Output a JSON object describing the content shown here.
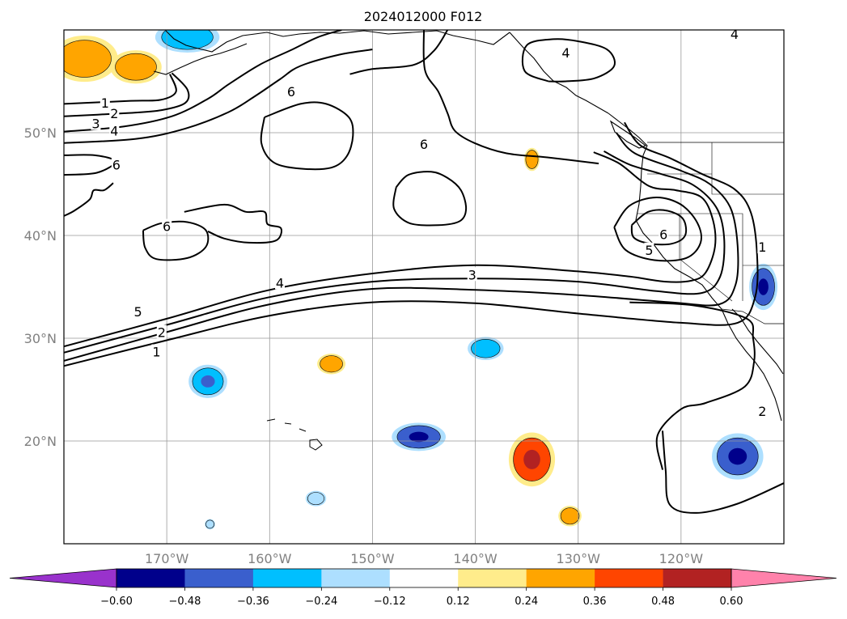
{
  "title": "2024012000 F012",
  "map": {
    "projection": "Plate Carree",
    "lon_range": [
      -180,
      -110
    ],
    "lat_range": [
      10,
      60
    ],
    "grid": true,
    "lat_ticks": [
      {
        "value": 50,
        "label": "50°N"
      },
      {
        "value": 40,
        "label": "40°N"
      },
      {
        "value": 30,
        "label": "30°N"
      },
      {
        "value": 20,
        "label": "20°N"
      }
    ],
    "lon_ticks": [
      {
        "value": -170,
        "label": "170°W"
      },
      {
        "value": -160,
        "label": "160°W"
      },
      {
        "value": -150,
        "label": "150°W"
      },
      {
        "value": -140,
        "label": "140°W"
      },
      {
        "value": -130,
        "label": "130°W"
      },
      {
        "value": -120,
        "label": "120°W"
      }
    ]
  },
  "colorbar": {
    "orientation": "horizontal",
    "extend": "both",
    "levels": [
      -0.6,
      -0.48,
      -0.36,
      -0.24,
      -0.12,
      0.12,
      0.24,
      0.36,
      0.48,
      0.6
    ],
    "tick_labels": [
      "−0.60",
      "−0.48",
      "−0.36",
      "−0.24",
      "−0.12",
      "0.12",
      "0.24",
      "0.36",
      "0.48",
      "0.60"
    ],
    "colors": [
      "#9932CC",
      "#00008B",
      "#3A5FCD",
      "#00BFFF",
      "#ADDFFF",
      "#FFFFFF",
      "#FFEC8B",
      "#FFA500",
      "#FF4500",
      "#B22222",
      "#FF82AB"
    ]
  },
  "contour_labels": [
    {
      "text": "6",
      "lon": -157.9,
      "lat": 54.0
    },
    {
      "text": "6",
      "lon": -174.9,
      "lat": 46.9
    },
    {
      "text": "6",
      "lon": -170.0,
      "lat": 40.9
    },
    {
      "text": "6",
      "lon": -145.0,
      "lat": 48.9
    },
    {
      "text": "6",
      "lon": -121.7,
      "lat": 40.1
    },
    {
      "text": "5",
      "lon": -123.1,
      "lat": 38.6
    },
    {
      "text": "4",
      "lon": -131.2,
      "lat": 57.8
    },
    {
      "text": "4",
      "lon": -114.8,
      "lat": 59.6
    },
    {
      "text": "4",
      "lon": -159.0,
      "lat": 35.4
    },
    {
      "text": "4",
      "lon": -175.1,
      "lat": 50.2
    },
    {
      "text": "3",
      "lon": -140.3,
      "lat": 36.2
    },
    {
      "text": "3",
      "lon": -176.9,
      "lat": 50.9
    },
    {
      "text": "2",
      "lon": -175.1,
      "lat": 51.9
    },
    {
      "text": "1",
      "lon": -176.0,
      "lat": 52.9
    },
    {
      "text": "5",
      "lon": -172.8,
      "lat": 32.6
    },
    {
      "text": "2",
      "lon": -170.5,
      "lat": 30.6
    },
    {
      "text": "1",
      "lon": -171.0,
      "lat": 28.7
    },
    {
      "text": "1",
      "lon": -112.1,
      "lat": 38.9
    },
    {
      "text": "2",
      "lon": -112.1,
      "lat": 22.9
    }
  ],
  "contours": [
    {
      "value": 6,
      "pts": [
        [
          -160.5,
          51.5
        ],
        [
          -157.0,
          52.8
        ],
        [
          -154.5,
          52.8
        ],
        [
          -152.3,
          51.5
        ],
        [
          -151.9,
          49.7
        ],
        [
          -152.5,
          47.7
        ],
        [
          -154.0,
          46.6
        ],
        [
          -156.9,
          46.5
        ],
        [
          -159.6,
          47.1
        ],
        [
          -160.8,
          49.0
        ],
        [
          -160.5,
          51.5
        ]
      ]
    },
    {
      "value": 6,
      "pts": [
        [
          -147.7,
          44.7
        ],
        [
          -146.5,
          45.9
        ],
        [
          -144.3,
          46.2
        ],
        [
          -142.7,
          45.6
        ],
        [
          -141.4,
          44.4
        ],
        [
          -140.9,
          42.6
        ],
        [
          -141.5,
          41.4
        ],
        [
          -143.6,
          41.0
        ],
        [
          -146.4,
          41.2
        ],
        [
          -147.9,
          42.6
        ],
        [
          -147.7,
          44.7
        ]
      ]
    },
    {
      "value": 6,
      "pts": [
        [
          -172.3,
          40.5
        ],
        [
          -170.5,
          41.2
        ],
        [
          -168.0,
          41.3
        ],
        [
          -166.2,
          40.5
        ],
        [
          -166.2,
          38.9
        ],
        [
          -168.0,
          37.8
        ],
        [
          -171.0,
          37.7
        ],
        [
          -172.1,
          38.8
        ],
        [
          -172.3,
          40.5
        ]
      ]
    },
    {
      "value": 6,
      "pts": [
        [
          -124.8,
          41.0
        ],
        [
          -123.2,
          42.3
        ],
        [
          -121.3,
          42.4
        ],
        [
          -119.8,
          41.6
        ],
        [
          -119.6,
          40.0
        ],
        [
          -120.9,
          39.2
        ],
        [
          -123.0,
          39.2
        ],
        [
          -124.6,
          39.8
        ],
        [
          -124.8,
          41.0
        ]
      ]
    },
    {
      "value": 5,
      "pts": [
        [
          -126.5,
          40.8
        ],
        [
          -125.0,
          42.9
        ],
        [
          -122.4,
          43.7
        ],
        [
          -120.0,
          43.0
        ],
        [
          -118.4,
          41.2
        ],
        [
          -118.1,
          39.3
        ],
        [
          -119.5,
          37.8
        ],
        [
          -122.6,
          37.6
        ],
        [
          -125.4,
          38.6
        ],
        [
          -126.5,
          40.8
        ]
      ]
    },
    {
      "value": 4,
      "pts": [
        [
          -180,
          45.9
        ],
        [
          -176.8,
          46.1
        ],
        [
          -175.0,
          47.2
        ],
        [
          -177.0,
          47.8
        ],
        [
          -180,
          47.8
        ]
      ]
    },
    {
      "value": 4,
      "pts": [
        [
          -128.5,
          48.1
        ],
        [
          -126.0,
          47.0
        ],
        [
          -123.1,
          44.8
        ],
        [
          -120.5,
          44.4
        ],
        [
          -118.0,
          43.7
        ],
        [
          -116.9,
          41.5
        ],
        [
          -116.7,
          38.9
        ],
        [
          -117.6,
          36.4
        ],
        [
          -119.0,
          35.6
        ],
        [
          -121.5,
          35.5
        ],
        [
          -125.0,
          36.0
        ],
        [
          -130.0,
          36.5
        ],
        [
          -140.0,
          37.1
        ],
        [
          -150.0,
          36.3
        ],
        [
          -160.0,
          34.7
        ],
        [
          -170.0,
          31.9
        ],
        [
          -180,
          29.2
        ]
      ]
    },
    {
      "value": 3,
      "pts": [
        [
          -180,
          28.6
        ],
        [
          -170.0,
          31.3
        ],
        [
          -160.0,
          34.0
        ],
        [
          -150.0,
          35.5
        ],
        [
          -140.0,
          35.8
        ],
        [
          -130.0,
          35.5
        ],
        [
          -122.5,
          34.6
        ],
        [
          -118.0,
          34.4
        ],
        [
          -116.2,
          36.0
        ],
        [
          -115.8,
          39.5
        ],
        [
          -116.5,
          42.6
        ],
        [
          -118.8,
          44.9
        ],
        [
          -122.0,
          46.0
        ],
        [
          -125.0,
          46.9
        ],
        [
          -127.5,
          48.2
        ]
      ]
    },
    {
      "value": 2,
      "pts": [
        [
          -180,
          27.8
        ],
        [
          -170.0,
          30.6
        ],
        [
          -160.0,
          33.3
        ],
        [
          -150.0,
          34.8
        ],
        [
          -140.0,
          34.7
        ],
        [
          -130.0,
          34.2
        ],
        [
          -121.0,
          33.5
        ],
        [
          -116.3,
          33.3
        ],
        [
          -114.7,
          35.2
        ],
        [
          -114.5,
          39.0
        ],
        [
          -115.2,
          42.7
        ],
        [
          -117.2,
          45.0
        ],
        [
          -120.0,
          46.3
        ],
        [
          -124.5,
          48.0
        ],
        [
          -126.3,
          50.0
        ]
      ]
    },
    {
      "value": 1,
      "pts": [
        [
          -180,
          27.3
        ],
        [
          -170.0,
          29.8
        ],
        [
          -160.0,
          32.2
        ],
        [
          -150.0,
          33.5
        ],
        [
          -140.0,
          33.4
        ],
        [
          -130.0,
          32.4
        ],
        [
          -120.0,
          31.5
        ],
        [
          -114.5,
          31.5
        ],
        [
          -112.8,
          34.0
        ],
        [
          -112.6,
          38.0
        ],
        [
          -113.2,
          42.2
        ],
        [
          -114.8,
          44.5
        ],
        [
          -118.0,
          46.0
        ],
        [
          -121.0,
          47.5
        ],
        [
          -124.0,
          48.8
        ],
        [
          -125.5,
          51.0
        ]
      ]
    },
    {
      "value": 4,
      "pts": [
        [
          -180,
          49.0
        ],
        [
          -173.0,
          49.4
        ],
        [
          -168.2,
          50.4
        ],
        [
          -164.0,
          52.0
        ],
        [
          -161.5,
          53.5
        ],
        [
          -159.0,
          55.2
        ],
        [
          -157.0,
          56.5
        ],
        [
          -153.2,
          57.6
        ],
        [
          -150.0,
          58.1
        ]
      ]
    },
    {
      "value": 3,
      "pts": [
        [
          -180,
          50.1
        ],
        [
          -174.2,
          50.6
        ],
        [
          -169.5,
          51.6
        ],
        [
          -166.0,
          53.3
        ],
        [
          -164.0,
          54.7
        ],
        [
          -161.0,
          56.6
        ],
        [
          -158.0,
          58.0
        ],
        [
          -155.3,
          59.3
        ],
        [
          -153.0,
          60
        ]
      ]
    },
    {
      "value": 2,
      "pts": [
        [
          -180,
          51.6
        ],
        [
          -174.0,
          51.9
        ],
        [
          -170.5,
          52.2
        ],
        [
          -168.2,
          52.9
        ],
        [
          -168.0,
          54.2
        ],
        [
          -169.5,
          55.8
        ]
      ]
    },
    {
      "value": 1,
      "pts": [
        [
          -180,
          52.8
        ],
        [
          -173.5,
          53.1
        ],
        [
          -170.6,
          53.2
        ],
        [
          -169.1,
          54.0
        ],
        [
          -169.7,
          55.7
        ]
      ]
    },
    {
      "value": 4,
      "pts": [
        [
          -152.2,
          55.7
        ],
        [
          -150.0,
          56.2
        ],
        [
          -146.0,
          56.6
        ],
        [
          -144.0,
          58.0
        ],
        [
          -142.7,
          60
        ]
      ]
    },
    {
      "value": 5,
      "pts": [
        [
          -145.0,
          60
        ],
        [
          -144.9,
          56.1
        ],
        [
          -143.6,
          54.0
        ],
        [
          -142.7,
          51.9
        ],
        [
          -142.0,
          50.2
        ],
        [
          -140.1,
          49.0
        ],
        [
          -137.0,
          48.0
        ],
        [
          -133.0,
          47.6
        ],
        [
          -128.0,
          47.0
        ]
      ]
    },
    {
      "value": 4,
      "pts": [
        [
          -132.9,
          55.0
        ],
        [
          -135.2,
          56.0
        ],
        [
          -135.0,
          58.5
        ],
        [
          -132.4,
          59.1
        ],
        [
          -130.0,
          58.9
        ],
        [
          -127.2,
          58.1
        ],
        [
          -126.5,
          56.5
        ],
        [
          -128.4,
          55.3
        ],
        [
          -131.2,
          55.0
        ],
        [
          -132.9,
          55.0
        ]
      ]
    },
    {
      "value": 4,
      "pts": [
        [
          -180,
          41.9
        ],
        [
          -179.0,
          42.4
        ],
        [
          -177.5,
          43.5
        ],
        [
          -177.1,
          44.4
        ],
        [
          -176.1,
          44.4
        ],
        [
          -175.2,
          45.1
        ]
      ]
    },
    {
      "value": 6,
      "pts": [
        [
          -168.3,
          42.3
        ],
        [
          -164.4,
          43.0
        ],
        [
          -162.3,
          42.3
        ],
        [
          -160.5,
          42.3
        ],
        [
          -160.2,
          41.1
        ],
        [
          -158.9,
          40.7
        ],
        [
          -159.4,
          39.5
        ],
        [
          -162.0,
          39.3
        ],
        [
          -164.4,
          39.7
        ],
        [
          -166.0,
          40.4
        ]
      ]
    },
    {
      "value": 3,
      "pts": [
        [
          -121.8,
          21.0
        ],
        [
          -121.5,
          17.2
        ],
        [
          -121.1,
          13.8
        ],
        [
          -118.5,
          13.0
        ],
        [
          -114.5,
          13.9
        ],
        [
          -110,
          15.9
        ]
      ]
    },
    {
      "value": 2,
      "pts": [
        [
          -125.0,
          33.5
        ],
        [
          -118.8,
          33.2
        ],
        [
          -113.6,
          31.9
        ],
        [
          -113.0,
          30.0
        ],
        [
          -112.9,
          27.7
        ],
        [
          -113.8,
          25.3
        ],
        [
          -117.6,
          23.7
        ],
        [
          -120.0,
          23.1
        ],
        [
          -122.3,
          20.5
        ],
        [
          -121.8,
          17.2
        ]
      ]
    }
  ],
  "anomaly_blobs": [
    {
      "lon": -178.0,
      "lat": 57.2,
      "rx": 2.6,
      "ry": 1.8,
      "level": 0.3
    },
    {
      "lon": -173.0,
      "lat": 56.4,
      "rx": 2.0,
      "ry": 1.3,
      "level": 0.3
    },
    {
      "lon": -168.0,
      "lat": 59.3,
      "rx": 2.5,
      "ry": 1.2,
      "level": -0.3
    },
    {
      "lon": -134.5,
      "lat": 47.4,
      "rx": 0.6,
      "ry": 0.9,
      "level": 0.3
    },
    {
      "lon": -154.0,
      "lat": 27.5,
      "rx": 1.1,
      "ry": 0.8,
      "level": 0.3
    },
    {
      "lon": -166.0,
      "lat": 25.8,
      "rx": 1.5,
      "ry": 1.3,
      "level": -0.36
    },
    {
      "lon": -139.0,
      "lat": 29.0,
      "rx": 1.4,
      "ry": 0.9,
      "level": -0.3
    },
    {
      "lon": -145.5,
      "lat": 20.4,
      "rx": 2.1,
      "ry": 1.1,
      "level": -0.4
    },
    {
      "lon": -134.5,
      "lat": 18.2,
      "rx": 1.8,
      "ry": 2.1,
      "level": 0.4
    },
    {
      "lon": -130.8,
      "lat": 12.7,
      "rx": 0.9,
      "ry": 0.8,
      "level": 0.3
    },
    {
      "lon": -114.5,
      "lat": 18.5,
      "rx": 2.0,
      "ry": 1.8,
      "level": -0.4
    },
    {
      "lon": -112.0,
      "lat": 35.0,
      "rx": 1.1,
      "ry": 1.8,
      "level": -0.4
    },
    {
      "lon": -155.5,
      "lat": 14.4,
      "rx": 0.8,
      "ry": 0.6,
      "level": -0.2
    },
    {
      "lon": -165.8,
      "lat": 11.9,
      "rx": 0.4,
      "ry": 0.4,
      "level": -0.2
    }
  ]
}
